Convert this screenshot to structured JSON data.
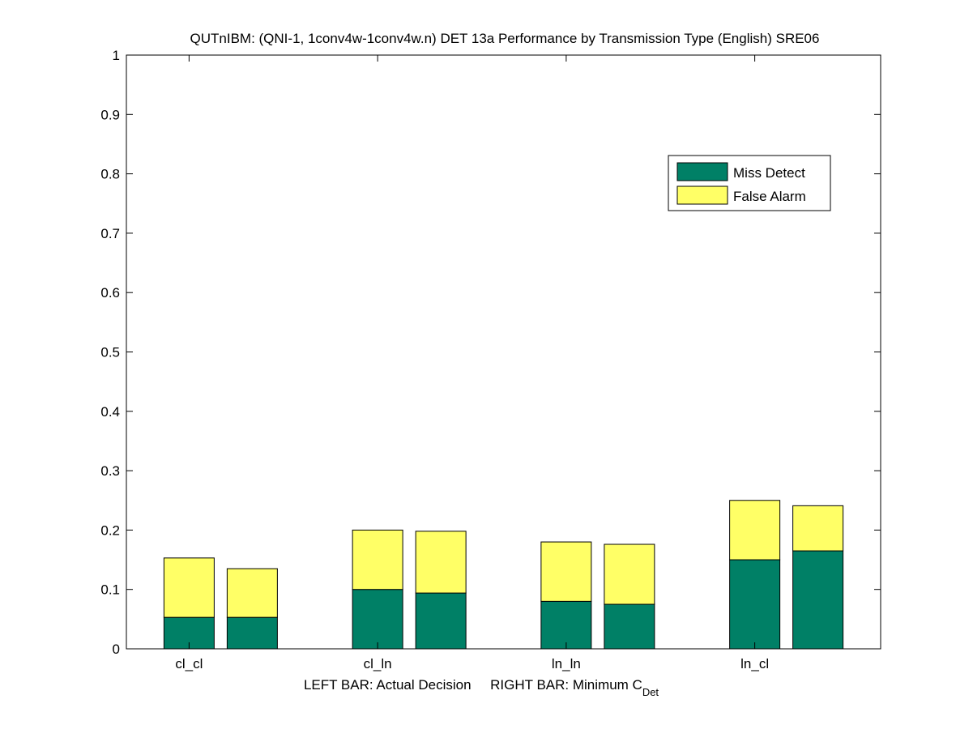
{
  "chart_data": {
    "type": "bar",
    "stacked": true,
    "title": "QUTnIBM: (QNI-1, 1conv4w-1conv4w.n) DET 13a Performance by Transmission Type (English) SRE06",
    "xlabel": "LEFT BAR: Actual Decision     RIGHT BAR: Minimum C",
    "xlabel_sub": "Det",
    "ylabel": "",
    "ylim": [
      0,
      1
    ],
    "yticks": [
      "0",
      "0.1",
      "0.2",
      "0.3",
      "0.4",
      "0.5",
      "0.6",
      "0.7",
      "0.8",
      "0.9",
      "1"
    ],
    "grid": false,
    "legend_position": "top-right",
    "categories": [
      "cl_cl",
      "cl_ln",
      "ln_ln",
      "ln_cl"
    ],
    "bars_per_category": [
      "Actual Decision",
      "Minimum C_Det"
    ],
    "series": [
      {
        "name": "Miss Detect",
        "color": "#008066",
        "actual_decision": [
          0.053,
          0.1,
          0.08,
          0.15
        ],
        "minimum_cdet": [
          0.053,
          0.094,
          0.075,
          0.165
        ]
      },
      {
        "name": "False Alarm",
        "color": "#ffff66",
        "actual_decision": [
          0.1,
          0.1,
          0.1,
          0.1
        ],
        "minimum_cdet": [
          0.082,
          0.104,
          0.101,
          0.076
        ]
      }
    ]
  }
}
